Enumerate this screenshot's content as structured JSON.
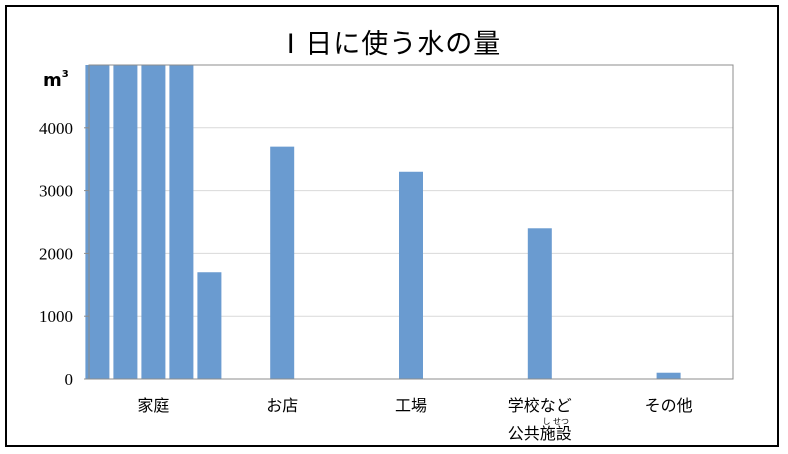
{
  "chart_data": {
    "type": "bar",
    "title": "Ⅰ 日に使う水の量",
    "unit": "m",
    "unit_sup": "3",
    "ylim": [
      0,
      5000
    ],
    "y_ticks": [
      0,
      1000,
      2000,
      3000,
      4000
    ],
    "grid": true,
    "legend": "none",
    "bar_color": "#6a9bd0",
    "categories": [
      {
        "label": "家庭",
        "label_line2": "",
        "ruby": ""
      },
      {
        "label": "お店",
        "label_line2": "",
        "ruby": ""
      },
      {
        "label": "工場",
        "label_line2": "",
        "ruby": ""
      },
      {
        "label": "学校など",
        "label_line2": "公共施設",
        "ruby": "し せつ"
      },
      {
        "label": "その他",
        "label_line2": "",
        "ruby": ""
      }
    ],
    "bars": [
      {
        "category": 0,
        "slot": 0,
        "value": 5000
      },
      {
        "category": 0,
        "slot": 1,
        "value": 5000
      },
      {
        "category": 0,
        "slot": 2,
        "value": 5000
      },
      {
        "category": 0,
        "slot": 3,
        "value": 5000
      },
      {
        "category": 0,
        "slot": 4,
        "value": 1700
      },
      {
        "category": 1,
        "slot": 2,
        "value": 3700
      },
      {
        "category": 2,
        "slot": 2,
        "value": 3300
      },
      {
        "category": 3,
        "slot": 2,
        "value": 2400
      },
      {
        "category": 4,
        "slot": 2,
        "value": 100
      }
    ]
  }
}
